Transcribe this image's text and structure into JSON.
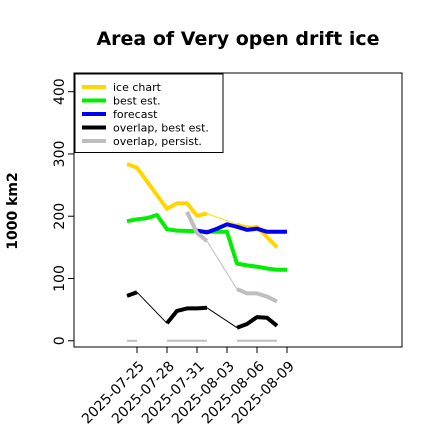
{
  "chart_data": {
    "type": "line",
    "title": "Area of Very open drift ice",
    "ylabel": "1000 km2",
    "xlabel": "",
    "ylim": [
      -10,
      430
    ],
    "yticks": [
      0,
      100,
      200,
      300,
      400
    ],
    "xlim": [
      -6.3,
      26.5
    ],
    "xticks": [
      {
        "x": 0,
        "label": "2025-07-25",
        "color": "#000000"
      },
      {
        "x": 3,
        "label": "2025-07-28",
        "color": "#000000"
      },
      {
        "x": 6,
        "label": "2025-07-31",
        "color": "#228B22"
      },
      {
        "x": 9,
        "label": "2025-08-03",
        "color": "#000000"
      },
      {
        "x": 12,
        "label": "2025-08-06",
        "color": "#000000"
      },
      {
        "x": 15,
        "label": "2025-08-09",
        "color": "#000000"
      }
    ],
    "legend": {
      "placement": "top-left",
      "entries": [
        {
          "label": "ice chart",
          "color": "#FFD700"
        },
        {
          "label": "best est.",
          "color": "#00EE00"
        },
        {
          "label": "forecast",
          "color": "#0000EE"
        },
        {
          "label": "overlap, best est.",
          "color": "#000000"
        },
        {
          "label": "overlap, persist.",
          "color": "#BEBEBE"
        }
      ]
    },
    "series": [
      {
        "name": "ice chart",
        "color": "#FFD700",
        "width": 4,
        "points": [
          [
            -1,
            284
          ],
          [
            0,
            278
          ],
          [
            3,
            212
          ],
          [
            4,
            221
          ],
          [
            5,
            221
          ],
          [
            6,
            201
          ],
          [
            7,
            204
          ]
        ]
      },
      {
        "name": "ice chart",
        "color": "#FFD700",
        "width": 1,
        "points": [
          [
            0,
            278
          ],
          [
            3,
            212
          ]
        ]
      },
      {
        "name": "ice chart",
        "color": "#FFD700",
        "width": 1,
        "points": [
          [
            7,
            204
          ],
          [
            10,
            187
          ],
          [
            12,
            183
          ],
          [
            14,
            150
          ]
        ]
      },
      {
        "name": "ice chart",
        "color": "#FFD700",
        "width": 4,
        "points": [
          [
            10,
            187
          ],
          [
            11,
            180
          ],
          [
            12,
            183
          ],
          [
            14,
            150
          ]
        ]
      },
      {
        "name": "best est.",
        "color": "#00EE00",
        "width": 4,
        "points": [
          [
            -1,
            192
          ],
          [
            0,
            195
          ],
          [
            1,
            197
          ],
          [
            2,
            202
          ],
          [
            3,
            179
          ],
          [
            4,
            177
          ],
          [
            6,
            176
          ],
          [
            7,
            175
          ],
          [
            9,
            175
          ],
          [
            10,
            124
          ],
          [
            11,
            121
          ],
          [
            12,
            119
          ],
          [
            13,
            116
          ],
          [
            14,
            114
          ],
          [
            15,
            114
          ]
        ]
      },
      {
        "name": "forecast",
        "color": "#0000EE",
        "width": 4,
        "points": [
          [
            6,
            177
          ],
          [
            7,
            174
          ],
          [
            8,
            180
          ],
          [
            9,
            187
          ],
          [
            10,
            183
          ],
          [
            11,
            178
          ],
          [
            12,
            180
          ],
          [
            13,
            175
          ],
          [
            14,
            175
          ],
          [
            15,
            175
          ]
        ]
      },
      {
        "name": "overlap, persist.",
        "color": "#BEBEBE",
        "width": 4,
        "points": [
          [
            5,
            207
          ],
          [
            6,
            173
          ],
          [
            7,
            160
          ]
        ]
      },
      {
        "name": "overlap, persist.",
        "color": "#BEBEBE",
        "width": 1,
        "points": [
          [
            7,
            160
          ],
          [
            10,
            83
          ]
        ]
      },
      {
        "name": "overlap, persist.",
        "color": "#BEBEBE",
        "width": 4,
        "points": [
          [
            10,
            83
          ],
          [
            11,
            76
          ],
          [
            12,
            76
          ],
          [
            13,
            71
          ],
          [
            14,
            63
          ]
        ]
      },
      {
        "name": "overlap, persist.",
        "color": "#BEBEBE",
        "width": 2,
        "points": [
          [
            -1,
            0
          ],
          [
            0,
            0
          ]
        ]
      },
      {
        "name": "overlap, persist.",
        "color": "#BEBEBE",
        "width": 2,
        "points": [
          [
            3,
            0
          ],
          [
            7,
            0
          ]
        ]
      },
      {
        "name": "overlap, persist.",
        "color": "#BEBEBE",
        "width": 2,
        "points": [
          [
            10,
            0
          ],
          [
            14,
            0
          ]
        ]
      },
      {
        "name": "overlap, best est.",
        "color": "#000000",
        "width": 4,
        "points": [
          [
            -1,
            72
          ],
          [
            0,
            78
          ]
        ]
      },
      {
        "name": "overlap, best est.",
        "color": "#000000",
        "width": 1,
        "points": [
          [
            0,
            78
          ],
          [
            3,
            28
          ]
        ]
      },
      {
        "name": "overlap, best est.",
        "color": "#000000",
        "width": 4,
        "points": [
          [
            3,
            28
          ],
          [
            4,
            48
          ],
          [
            5,
            52
          ],
          [
            6,
            52
          ],
          [
            7,
            53
          ]
        ]
      },
      {
        "name": "overlap, best est.",
        "color": "#000000",
        "width": 1,
        "points": [
          [
            7,
            53
          ],
          [
            10,
            21
          ]
        ]
      },
      {
        "name": "overlap, best est.",
        "color": "#000000",
        "width": 4,
        "points": [
          [
            10,
            21
          ],
          [
            11,
            27
          ],
          [
            12,
            38
          ],
          [
            13,
            37
          ],
          [
            14,
            24
          ]
        ]
      }
    ]
  }
}
